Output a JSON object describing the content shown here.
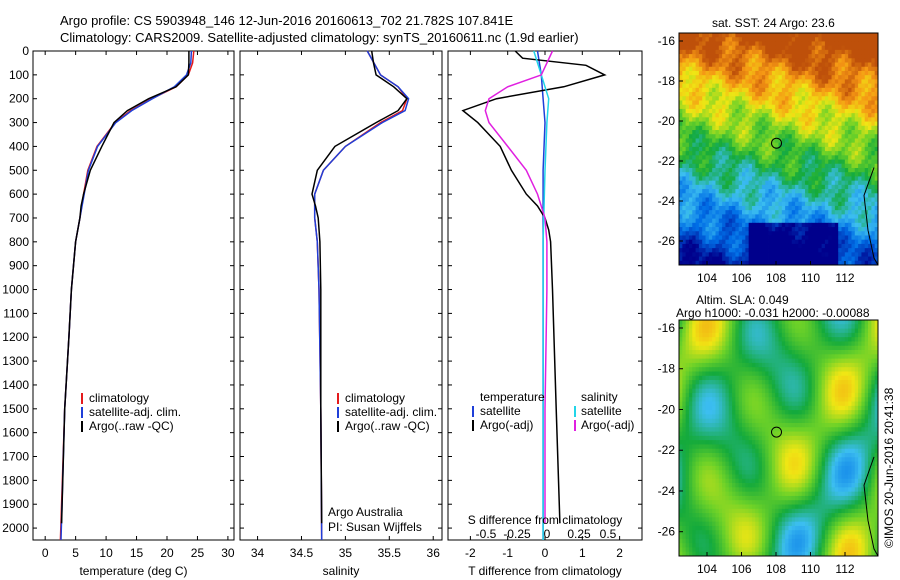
{
  "header": {
    "line1": "Argo profile: CS 5903948_146 12-Jun-2016 20160613_702 21.782S 107.841E",
    "line2": "Climatology: CARS2009. Satellite-adjusted climatology: synTS_20160611.nc (1.9d earlier)"
  },
  "maps": {
    "sst_title": "sat. SST: 24 Argo: 23.6",
    "sla_title1": "Altim. SLA: 0.049",
    "sla_title2": "Argo h1000: -0.031 h2000: -0.00088",
    "lat_ticks": [
      "-16",
      "-18",
      "-20",
      "-22",
      "-24",
      "-26"
    ],
    "lon_ticks": [
      "104",
      "106",
      "108",
      "110",
      "112"
    ]
  },
  "footer": {
    "stamp": "©IMOS 20-Jun-2016 20:41:38"
  },
  "colors": {
    "climatology": "#e41a1c",
    "satellite_adj": "#1f3fd8",
    "argo": "#000000",
    "salinity_sat": "#22d5e8",
    "salinity_argo": "#e020e0"
  },
  "chart_data": [
    {
      "type": "line",
      "title": "",
      "xlabel": "temperature (deg C)",
      "ylabel": "",
      "xlim": [
        -2,
        31
      ],
      "ylim": [
        2050,
        0
      ],
      "x_ticks": [
        "0",
        "5",
        "10",
        "15",
        "20",
        "25",
        "30"
      ],
      "y_ticks": [
        "0",
        "100",
        "200",
        "300",
        "400",
        "500",
        "600",
        "700",
        "800",
        "900",
        "1000",
        "1100",
        "1200",
        "1300",
        "1400",
        "1500",
        "1600",
        "1700",
        "1800",
        "1900",
        "2000"
      ],
      "legend": [
        "climatology",
        "satellite-adj. clim.",
        "Argo(..raw -QC)"
      ],
      "series": [
        {
          "name": "climatology",
          "depth": [
            0,
            50,
            100,
            150,
            200,
            250,
            300,
            400,
            500,
            600,
            700,
            800,
            1000,
            1200,
            1500,
            2050
          ],
          "values": [
            24.4,
            24.2,
            23.5,
            21.5,
            17.5,
            14.0,
            11.5,
            8.5,
            7.0,
            6.3,
            5.7,
            5.0,
            4.3,
            3.9,
            3.2,
            2.5
          ]
        },
        {
          "name": "satellite-adj. clim.",
          "depth": [
            0,
            50,
            100,
            150,
            200,
            250,
            300,
            400,
            500,
            600,
            700,
            800,
            1000,
            1200,
            1500,
            2050
          ],
          "values": [
            24.0,
            23.9,
            23.2,
            21.2,
            17.6,
            14.2,
            11.6,
            8.6,
            7.1,
            6.4,
            5.7,
            5.0,
            4.3,
            3.9,
            3.2,
            2.6
          ]
        },
        {
          "name": "Argo(..raw -QC)",
          "depth": [
            0,
            50,
            100,
            150,
            200,
            250,
            300,
            350,
            400,
            500,
            600,
            650,
            700,
            800,
            1000,
            1200,
            1500,
            1980
          ],
          "values": [
            23.6,
            23.6,
            23.5,
            21.5,
            17.0,
            13.5,
            11.3,
            10.3,
            9.3,
            7.4,
            6.3,
            5.9,
            5.7,
            5.0,
            4.3,
            3.9,
            3.2,
            2.7
          ]
        }
      ]
    },
    {
      "type": "line",
      "title": "",
      "xlabel": "salinity",
      "ylabel": "",
      "xlim": [
        33.8,
        36.1
      ],
      "ylim": [
        2050,
        0
      ],
      "x_ticks": [
        "34",
        "34.5",
        "35",
        "35.5",
        "36"
      ],
      "legend": [
        "climatology",
        "satellite-adj. clim.",
        "Argo(..raw -QC)"
      ],
      "annotation": [
        "Argo Australia",
        "PI: Susan Wijffels"
      ],
      "series": [
        {
          "name": "climatology",
          "depth": [
            0,
            100,
            150,
            200,
            250,
            300,
            400,
            500,
            600,
            700,
            800,
            1000,
            1500,
            2050
          ],
          "values": [
            35.25,
            35.4,
            35.6,
            35.7,
            35.65,
            35.4,
            35.0,
            34.75,
            34.65,
            34.65,
            34.68,
            34.7,
            34.72,
            34.73
          ]
        },
        {
          "name": "satellite-adj. clim.",
          "depth": [
            0,
            100,
            150,
            200,
            250,
            300,
            400,
            500,
            600,
            700,
            800,
            1000,
            1500,
            2050
          ],
          "values": [
            35.25,
            35.4,
            35.6,
            35.72,
            35.68,
            35.42,
            35.0,
            34.75,
            34.65,
            34.65,
            34.68,
            34.7,
            34.72,
            34.73
          ]
        },
        {
          "name": "Argo(..raw -QC)",
          "depth": [
            0,
            50,
            100,
            150,
            200,
            250,
            300,
            400,
            500,
            600,
            650,
            700,
            800,
            1000,
            1500,
            1980
          ],
          "values": [
            35.3,
            35.32,
            35.35,
            35.55,
            35.7,
            35.6,
            35.35,
            34.88,
            34.68,
            34.62,
            34.66,
            34.69,
            34.71,
            34.72,
            34.72,
            34.73
          ]
        }
      ]
    },
    {
      "type": "line",
      "title": "",
      "xlabel": "T difference from climatology",
      "xlabel2": "S difference from climatology",
      "xlim": [
        -2.6,
        2.6
      ],
      "x_ticks": [
        "-2",
        "-1",
        "0",
        "1",
        "2"
      ],
      "x_ticks_S": [
        "-0.5",
        "-0.25",
        "0",
        "0.25",
        "0.5"
      ],
      "ylim": [
        2050,
        0
      ],
      "legend_temperature": [
        "temperature",
        "satellite",
        "Argo(-adj)"
      ],
      "legend_salinity": [
        "salinity",
        "satellite",
        "Argo(-adj)"
      ],
      "series": [
        {
          "name": "satellite",
          "depth": [
            0,
            100,
            200,
            300,
            500,
            800,
            1000,
            1500,
            2050
          ],
          "values": [
            -0.2,
            -0.1,
            -0.05,
            0.0,
            -0.05,
            -0.05,
            -0.05,
            -0.05,
            -0.05
          ]
        },
        {
          "name": "Argo(-adj)",
          "depth": [
            0,
            30,
            60,
            100,
            150,
            200,
            250,
            300,
            400,
            500,
            600,
            650,
            700,
            750,
            800,
            1000,
            1500,
            1980
          ],
          "values": [
            -0.8,
            -0.6,
            1.1,
            1.6,
            0.5,
            -1.3,
            -2.2,
            -1.8,
            -1.2,
            -0.9,
            -0.5,
            -0.2,
            0.0,
            0.1,
            0.15,
            0.2,
            0.3,
            0.4
          ]
        },
        {
          "name": "salinity satellite",
          "depth": [
            0,
            100,
            200,
            300,
            500,
            800,
            1000,
            1500,
            2050
          ],
          "values": [
            -0.3,
            -0.1,
            0.1,
            0.05,
            0.0,
            -0.05,
            -0.05,
            -0.05,
            -0.05
          ]
        },
        {
          "name": "salinity Argo(-adj)",
          "depth": [
            0,
            100,
            150,
            200,
            250,
            300,
            400,
            500,
            600,
            700,
            800,
            1000,
            1500,
            1980
          ],
          "values": [
            0.2,
            -0.1,
            -1.0,
            -1.5,
            -1.6,
            -1.5,
            -1.0,
            -0.5,
            -0.2,
            0.0,
            0.05,
            0.05,
            0.0,
            0.0
          ]
        }
      ]
    }
  ]
}
